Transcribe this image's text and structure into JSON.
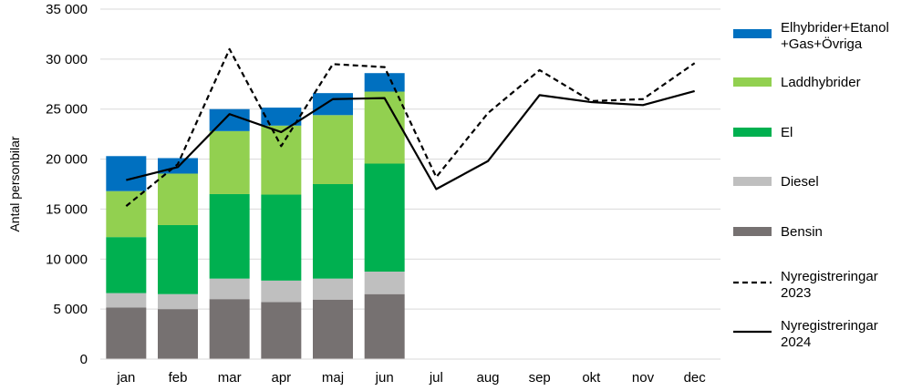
{
  "chart_data": {
    "type": "bar",
    "stacked": true,
    "title": "",
    "xlabel": "",
    "ylabel": "Antal personbilar",
    "ylim": [
      0,
      35000
    ],
    "ytick_step": 5000,
    "ytick_labels": [
      "0",
      "5 000",
      "10 000",
      "15 000",
      "20 000",
      "25 000",
      "30 000",
      "35 000"
    ],
    "grid": true,
    "legend_position": "right",
    "categories": [
      "jan",
      "feb",
      "mar",
      "apr",
      "maj",
      "jun",
      "jul",
      "aug",
      "sep",
      "okt",
      "nov",
      "dec"
    ],
    "series": [
      {
        "name": "Bensin",
        "kind": "bar",
        "color": "#767171",
        "values": [
          5150,
          5000,
          6000,
          5700,
          5950,
          6500,
          null,
          null,
          null,
          null,
          null,
          null
        ]
      },
      {
        "name": "Diesel",
        "kind": "bar",
        "color": "#bfbfbf",
        "values": [
          1450,
          1500,
          2050,
          2150,
          2100,
          2250,
          null,
          null,
          null,
          null,
          null,
          null
        ]
      },
      {
        "name": "El",
        "kind": "bar",
        "color": "#00b050",
        "values": [
          5600,
          6900,
          8450,
          8600,
          9450,
          10800,
          null,
          null,
          null,
          null,
          null,
          null
        ]
      },
      {
        "name": "Laddhybrider",
        "kind": "bar",
        "color": "#92d050",
        "values": [
          4600,
          5150,
          6300,
          6900,
          6900,
          7200,
          null,
          null,
          null,
          null,
          null,
          null
        ]
      },
      {
        "name": "Elhybrider+Etanol +Gas+Övriga",
        "kind": "bar",
        "color": "#0070c0",
        "values": [
          3500,
          1550,
          2200,
          1800,
          2200,
          1850,
          null,
          null,
          null,
          null,
          null,
          null
        ]
      },
      {
        "name": "Nyregistreringar 2023",
        "kind": "line",
        "dash": true,
        "color": "#000000",
        "values": [
          15300,
          19500,
          31000,
          21300,
          29500,
          29200,
          18200,
          24600,
          28900,
          25800,
          26000,
          29600
        ]
      },
      {
        "name": "Nyregistreringar 2024",
        "kind": "line",
        "dash": false,
        "color": "#000000",
        "values": [
          17900,
          19200,
          24500,
          22700,
          26000,
          26100,
          17000,
          19800,
          26400,
          25700,
          25400,
          26800
        ]
      }
    ],
    "legend_order": [
      [
        "Elhybrider+Etanol",
        "+Gas+Övriga"
      ],
      [
        "Laddhybrider"
      ],
      [
        "El"
      ],
      [
        "Diesel"
      ],
      [
        "Bensin"
      ],
      [
        "Nyregistreringar",
        "2023"
      ],
      [
        "Nyregistreringar",
        "2024"
      ]
    ]
  }
}
